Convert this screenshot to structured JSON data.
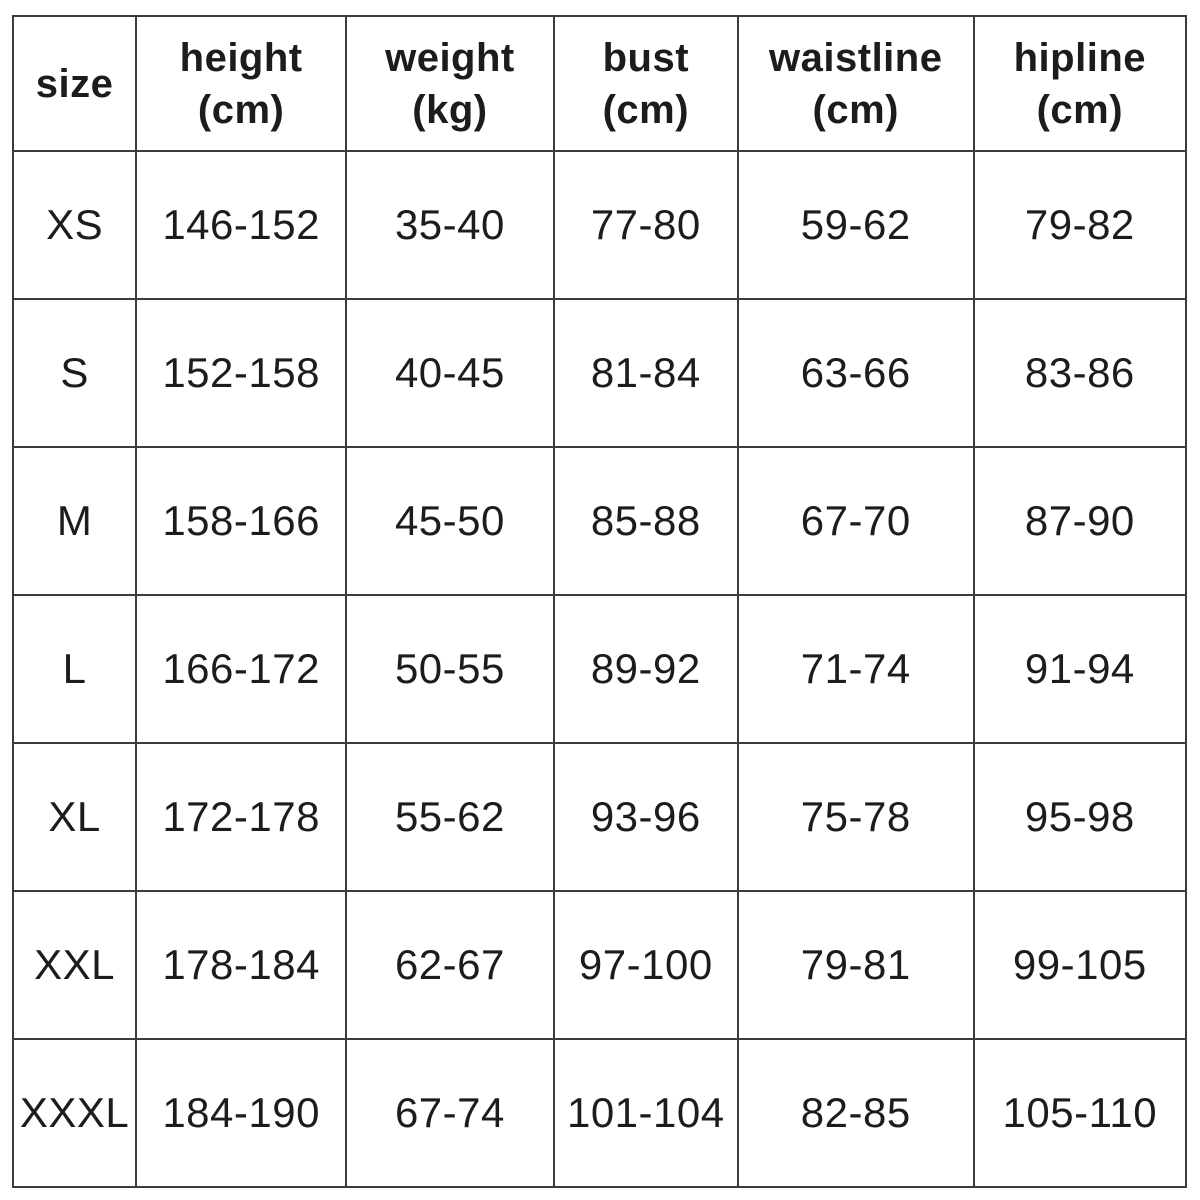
{
  "colors": {
    "background": "#ffffff",
    "border": "#3c3c3c",
    "text": "#1c1c1c"
  },
  "chart_data": {
    "type": "table",
    "title": "",
    "columns": [
      {
        "key": "size",
        "label": "size",
        "unit": ""
      },
      {
        "key": "height",
        "label": "height",
        "unit": "(cm)"
      },
      {
        "key": "weight",
        "label": "weight",
        "unit": "(kg)"
      },
      {
        "key": "bust",
        "label": "bust",
        "unit": "(cm)"
      },
      {
        "key": "waistline",
        "label": "waistline",
        "unit": "(cm)"
      },
      {
        "key": "hipline",
        "label": "hipline",
        "unit": "(cm)"
      }
    ],
    "rows": [
      {
        "size": "XS",
        "height": "146-152",
        "weight": "35-40",
        "bust": "77-80",
        "waistline": "59-62",
        "hipline": "79-82"
      },
      {
        "size": "S",
        "height": "152-158",
        "weight": "40-45",
        "bust": "81-84",
        "waistline": "63-66",
        "hipline": "83-86"
      },
      {
        "size": "M",
        "height": "158-166",
        "weight": "45-50",
        "bust": "85-88",
        "waistline": "67-70",
        "hipline": "87-90"
      },
      {
        "size": "L",
        "height": "166-172",
        "weight": "50-55",
        "bust": "89-92",
        "waistline": "71-74",
        "hipline": "91-94"
      },
      {
        "size": "XL",
        "height": "172-178",
        "weight": "55-62",
        "bust": "93-96",
        "waistline": "75-78",
        "hipline": "95-98"
      },
      {
        "size": "XXL",
        "height": "178-184",
        "weight": "62-67",
        "bust": "97-100",
        "waistline": "79-81",
        "hipline": "99-105"
      },
      {
        "size": "XXXL",
        "height": "184-190",
        "weight": "67-74",
        "bust": "101-104",
        "waistline": "82-85",
        "hipline": "105-110"
      }
    ]
  }
}
